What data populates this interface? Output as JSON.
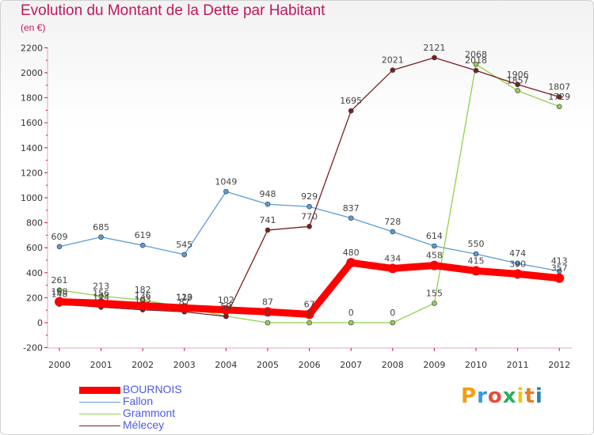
{
  "header": {
    "title": "Evolution du Montant de la Dette par Habitant",
    "subtitle": "(en €)"
  },
  "brand": {
    "logo_text": "Proxiti",
    "letter_colors": [
      "#f39c12",
      "#3498db",
      "#e74c3c",
      "#27ae60",
      "#f1c40f",
      "#e67e22",
      "#2980b9"
    ]
  },
  "chart_data": {
    "type": "line",
    "title": "Evolution du Montant de la Dette par Habitant",
    "subtitle": "(en €)",
    "x": [
      "2000",
      "2001",
      "2002",
      "2003",
      "2004",
      "2005",
      "2006",
      "2007",
      "2008",
      "2009",
      "2010",
      "2011",
      "2012"
    ],
    "y_ticks": [
      "2200",
      "2000",
      "1800",
      "1600",
      "1400",
      "1200",
      "1000",
      "800",
      "600",
      "400",
      "200",
      "0",
      "-200"
    ],
    "ylim": [
      -200,
      2200
    ],
    "grid": false,
    "legend_position": "bottom-left",
    "series": [
      {
        "name": "BOURNOIS",
        "color": "#ff0000",
        "values": [
          168,
          156,
          136,
          119,
          102,
          87,
          67,
          480,
          434,
          458,
          415,
          390,
          357
        ]
      },
      {
        "name": "Fallon",
        "color": "#5b9bd5",
        "values": [
          609,
          685,
          619,
          545,
          1049,
          948,
          929,
          837,
          728,
          614,
          550,
          474,
          413
        ]
      },
      {
        "name": "Grammont",
        "color": "#92d050",
        "values": [
          261,
          213,
          182,
          123,
          52,
          0,
          0,
          0,
          0,
          155,
          2068,
          1857,
          1729
        ]
      },
      {
        "name": "Mélecey",
        "color": "#7b1f1f",
        "values": [
          148,
          124,
          103,
          87,
          50,
          741,
          770,
          1695,
          2021,
          2121,
          2018,
          1906,
          1807
        ]
      }
    ]
  }
}
